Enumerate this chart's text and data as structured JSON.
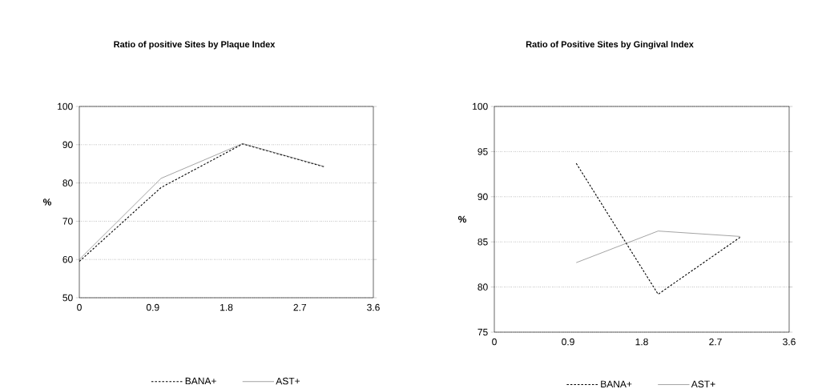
{
  "chart_data": [
    {
      "type": "line",
      "title": "Ratio of positive Sites by Plaque Index",
      "ylabel": "%",
      "x": [
        0,
        1,
        2,
        3
      ],
      "xlim": [
        0,
        3.6
      ],
      "xticks": [
        0,
        0.9,
        1.8,
        2.7,
        3.6
      ],
      "ylim": [
        50,
        100
      ],
      "yticks": [
        50,
        60,
        70,
        80,
        90,
        100
      ],
      "grid": "y",
      "legend": "bottom",
      "marker": "none",
      "series": [
        {
          "name": "BANA+",
          "color": "#000000",
          "line_style": "dashed",
          "values": [
            59.5,
            78.8,
            90.2,
            84.2
          ]
        },
        {
          "name": "AST+",
          "color": "#666666",
          "line_style": "solid",
          "values": [
            60,
            81.2,
            90.3,
            84.3
          ]
        }
      ]
    },
    {
      "type": "line",
      "title": "Ratio of Positive Sites by Gingival Index",
      "ylabel": "%",
      "x": [
        1,
        2,
        3
      ],
      "xlim": [
        0,
        3.6
      ],
      "xticks": [
        0,
        0.9,
        1.8,
        2.7,
        3.6
      ],
      "ylim": [
        75,
        100
      ],
      "yticks": [
        75,
        80,
        85,
        90,
        95,
        100
      ],
      "grid": "y",
      "legend": "bottom",
      "marker": "none",
      "series": [
        {
          "name": "BANA+",
          "color": "#000000",
          "line_style": "dashed",
          "values": [
            93.7,
            79.2,
            85.5
          ]
        },
        {
          "name": "AST+",
          "color": "#666666",
          "line_style": "solid",
          "values": [
            82.7,
            86.2,
            85.6
          ]
        }
      ]
    }
  ]
}
